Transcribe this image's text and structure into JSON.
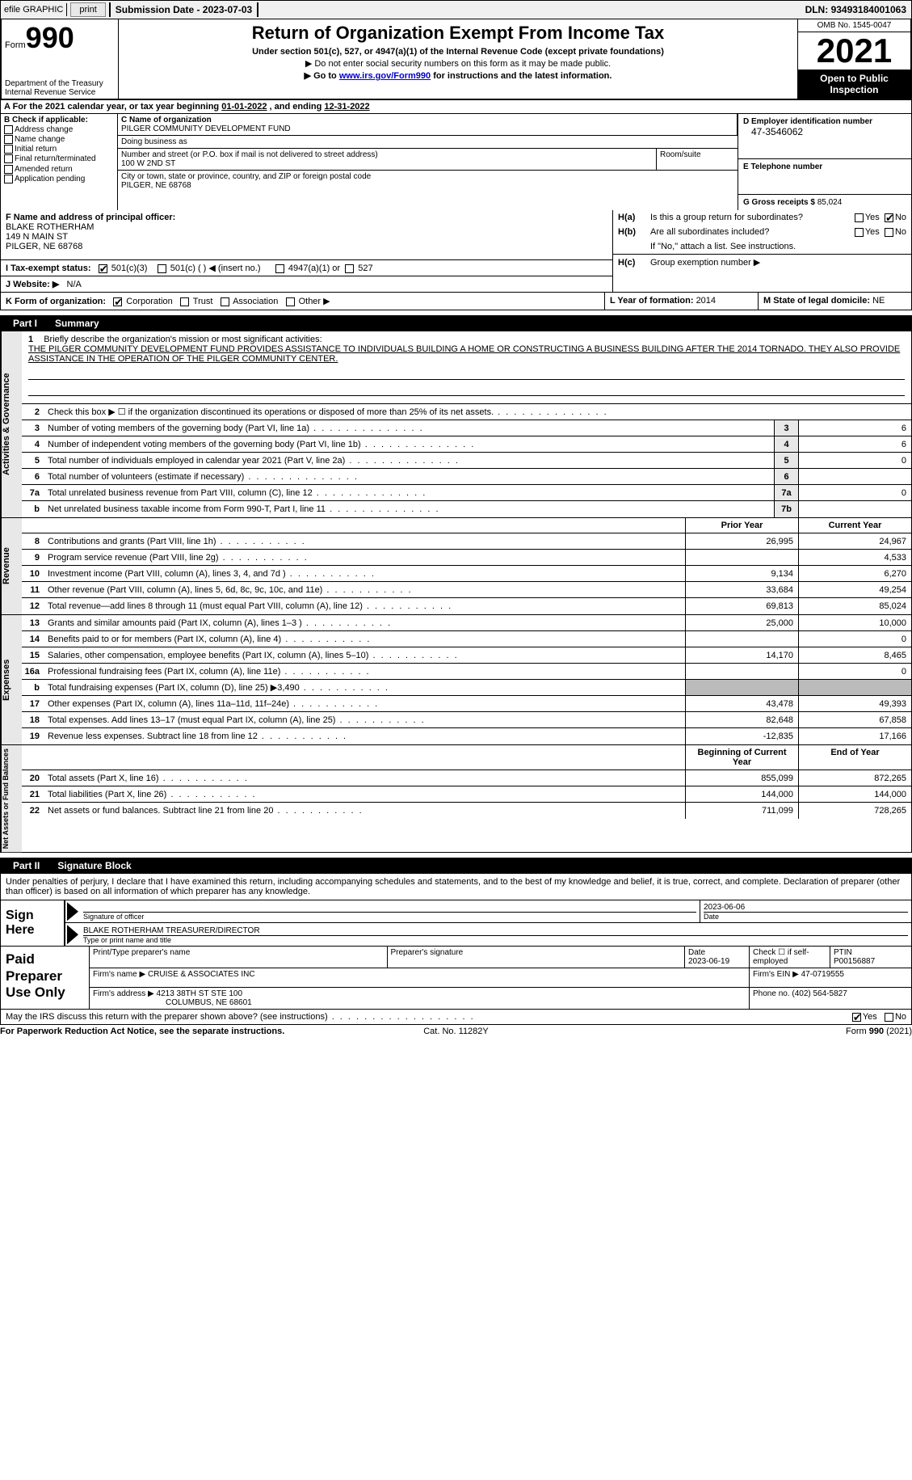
{
  "topbar": {
    "efile": "efile GRAPHIC",
    "print": "print",
    "sub_date_label": "Submission Date - ",
    "sub_date": "2023-07-03",
    "dln_label": "DLN: ",
    "dln": "93493184001063"
  },
  "header": {
    "form_word": "Form",
    "form_num": "990",
    "dept": "Department of the Treasury",
    "irs": "Internal Revenue Service",
    "title": "Return of Organization Exempt From Income Tax",
    "sub1": "Under section 501(c), 527, or 4947(a)(1) of the Internal Revenue Code (except private foundations)",
    "sub2_pre": "▶ Do not enter social security numbers on this form as it may be made public.",
    "sub3_pre": "▶ Go to ",
    "sub3_link": "www.irs.gov/Form990",
    "sub3_post": " for instructions and the latest information.",
    "omb": "OMB No. 1545-0047",
    "year": "2021",
    "open": "Open to Public Inspection"
  },
  "row_a": {
    "label": "A For the 2021 calendar year, or tax year beginning ",
    "begin": "01-01-2022",
    "mid": "   , and ending ",
    "end": "12-31-2022"
  },
  "box_b": {
    "title": "B Check if applicable:",
    "opts": [
      "Address change",
      "Name change",
      "Initial return",
      "Final return/terminated",
      "Amended return",
      "Application pending"
    ]
  },
  "box_c": {
    "name_label": "C Name of organization",
    "name": "PILGER COMMUNITY DEVELOPMENT FUND",
    "dba_label": "Doing business as",
    "dba": "",
    "street_label": "Number and street (or P.O. box if mail is not delivered to street address)",
    "street": "100 W 2ND ST",
    "room_label": "Room/suite",
    "city_label": "City or town, state or province, country, and ZIP or foreign postal code",
    "city": "PILGER, NE  68768"
  },
  "box_d": {
    "ein_label": "D Employer identification number",
    "ein": "47-3546062",
    "phone_label": "E Telephone number",
    "phone": "",
    "gross_label": "G Gross receipts $ ",
    "gross": "85,024"
  },
  "box_f": {
    "label": "F  Name and address of principal officer:",
    "name": "BLAKE ROTHERHAM",
    "addr1": "149 N MAIN ST",
    "addr2": "PILGER, NE  68768"
  },
  "box_h": {
    "a_lbl": "H(a)",
    "a_txt": "Is this a group return for subordinates?",
    "b_lbl": "H(b)",
    "b_txt": "Are all subordinates included?",
    "b_note": "If \"No,\" attach a list. See instructions.",
    "c_lbl": "H(c)",
    "c_txt": "Group exemption number ▶",
    "yes": "Yes",
    "no": "No"
  },
  "row_i": {
    "label": "I   Tax-exempt status:",
    "o1": "501(c)(3)",
    "o2": "501(c) (   ) ◀ (insert no.)",
    "o3": "4947(a)(1) or",
    "o4": "527"
  },
  "row_j": {
    "label": "J   Website: ▶",
    "val": "N/A"
  },
  "row_k": {
    "label": "K Form of organization:",
    "o1": "Corporation",
    "o2": "Trust",
    "o3": "Association",
    "o4": "Other ▶"
  },
  "row_l": {
    "label": "L Year of formation: ",
    "val": "2014"
  },
  "row_m": {
    "label": "M State of legal domicile: ",
    "val": "NE"
  },
  "part1": {
    "label": "Part I",
    "title": "Summary"
  },
  "section_labels": {
    "activities": "Activities & Governance",
    "revenue": "Revenue",
    "expenses": "Expenses",
    "netassets": "Net Assets or Fund Balances"
  },
  "mission": {
    "intro_num": "1",
    "intro": "Briefly describe the organization's mission or most significant activities:",
    "text": "THE PILGER COMMUNITY DEVELOPMENT FUND PROVIDES ASSISTANCE TO INDIVIDUALS BUILDING A HOME OR CONSTRUCTING A BUSINESS BUILDING AFTER THE 2014 TORNADO. THEY ALSO PROVIDE ASSISTANCE IN THE OPERATION OF THE PILGER COMMUNITY CENTER."
  },
  "lines_ag": [
    {
      "n": "2",
      "d": "Check this box ▶ ☐  if the organization discontinued its operations or disposed of more than 25% of its net assets.",
      "box": "",
      "v": ""
    },
    {
      "n": "3",
      "d": "Number of voting members of the governing body (Part VI, line 1a)",
      "box": "3",
      "v": "6"
    },
    {
      "n": "4",
      "d": "Number of independent voting members of the governing body (Part VI, line 1b)",
      "box": "4",
      "v": "6"
    },
    {
      "n": "5",
      "d": "Total number of individuals employed in calendar year 2021 (Part V, line 2a)",
      "box": "5",
      "v": "0"
    },
    {
      "n": "6",
      "d": "Total number of volunteers (estimate if necessary)",
      "box": "6",
      "v": ""
    },
    {
      "n": "7a",
      "d": "Total unrelated business revenue from Part VIII, column (C), line 12",
      "box": "7a",
      "v": "0"
    },
    {
      "n": "b",
      "d": "Net unrelated business taxable income from Form 990-T, Part I, line 11",
      "box": "7b",
      "v": ""
    }
  ],
  "year_cols": {
    "prior": "Prior Year",
    "current": "Current Year"
  },
  "year_cols2": {
    "prior": "Beginning of Current Year",
    "current": "End of Year"
  },
  "lines_rev": [
    {
      "n": "8",
      "d": "Contributions and grants (Part VIII, line 1h)",
      "p": "26,995",
      "c": "24,967"
    },
    {
      "n": "9",
      "d": "Program service revenue (Part VIII, line 2g)",
      "p": "",
      "c": "4,533"
    },
    {
      "n": "10",
      "d": "Investment income (Part VIII, column (A), lines 3, 4, and 7d )",
      "p": "9,134",
      "c": "6,270"
    },
    {
      "n": "11",
      "d": "Other revenue (Part VIII, column (A), lines 5, 6d, 8c, 9c, 10c, and 11e)",
      "p": "33,684",
      "c": "49,254"
    },
    {
      "n": "12",
      "d": "Total revenue—add lines 8 through 11 (must equal Part VIII, column (A), line 12)",
      "p": "69,813",
      "c": "85,024"
    }
  ],
  "lines_exp": [
    {
      "n": "13",
      "d": "Grants and similar amounts paid (Part IX, column (A), lines 1–3 )",
      "p": "25,000",
      "c": "10,000"
    },
    {
      "n": "14",
      "d": "Benefits paid to or for members (Part IX, column (A), line 4)",
      "p": "",
      "c": "0"
    },
    {
      "n": "15",
      "d": "Salaries, other compensation, employee benefits (Part IX, column (A), lines 5–10)",
      "p": "14,170",
      "c": "8,465"
    },
    {
      "n": "16a",
      "d": "Professional fundraising fees (Part IX, column (A), line 11e)",
      "p": "",
      "c": "0"
    },
    {
      "n": "b",
      "d": "Total fundraising expenses (Part IX, column (D), line 25) ▶3,490",
      "p": "shade",
      "c": "shade"
    },
    {
      "n": "17",
      "d": "Other expenses (Part IX, column (A), lines 11a–11d, 11f–24e)",
      "p": "43,478",
      "c": "49,393"
    },
    {
      "n": "18",
      "d": "Total expenses. Add lines 13–17 (must equal Part IX, column (A), line 25)",
      "p": "82,648",
      "c": "67,858"
    },
    {
      "n": "19",
      "d": "Revenue less expenses. Subtract line 18 from line 12",
      "p": "-12,835",
      "c": "17,166"
    }
  ],
  "lines_na": [
    {
      "n": "20",
      "d": "Total assets (Part X, line 16)",
      "p": "855,099",
      "c": "872,265"
    },
    {
      "n": "21",
      "d": "Total liabilities (Part X, line 26)",
      "p": "144,000",
      "c": "144,000"
    },
    {
      "n": "22",
      "d": "Net assets or fund balances. Subtract line 21 from line 20",
      "p": "711,099",
      "c": "728,265"
    }
  ],
  "part2": {
    "label": "Part II",
    "title": "Signature Block"
  },
  "sig_intro": "Under penalties of perjury, I declare that I have examined this return, including accompanying schedules and statements, and to the best of my knowledge and belief, it is true, correct, and complete. Declaration of preparer (other than officer) is based on all information of which preparer has any knowledge.",
  "sign_here": "Sign Here",
  "sig": {
    "sig_lbl": "Signature of officer",
    "date_lbl": "Date",
    "date_val": "2023-06-06",
    "name": "BLAKE ROTHERHAM  TREASURER/DIRECTOR",
    "name_lbl": "Type or print name and title"
  },
  "paid_prep": "Paid Preparer Use Only",
  "prep": {
    "h1": "Print/Type preparer's name",
    "h2": "Preparer's signature",
    "h3_lbl": "Date",
    "h3": "2023-06-19",
    "h4_lbl": "Check ☐ if self-employed",
    "h5_lbl": "PTIN",
    "h5": "P00156887",
    "firm_lbl": "Firm's name     ▶ ",
    "firm": "CRUISE & ASSOCIATES INC",
    "ein_lbl": "Firm's EIN ▶ ",
    "ein": "47-0719555",
    "addr_lbl": "Firm's address ▶ ",
    "addr1": "4213 38TH ST STE 100",
    "addr2": "COLUMBUS, NE  68601",
    "phone_lbl": "Phone no. ",
    "phone": "(402) 564-5827"
  },
  "discuss": {
    "txt": "May the IRS discuss this return with the preparer shown above? (see instructions)",
    "yes": "Yes",
    "no": "No"
  },
  "footer": {
    "l": "For Paperwork Reduction Act Notice, see the separate instructions.",
    "c": "Cat. No. 11282Y",
    "r": "Form 990 (2021)"
  },
  "colors": {
    "link": "#0000cc",
    "header_bg": "#000000",
    "shade": "#bbbbbb",
    "vlabel_bg": "#e8e8e8"
  }
}
